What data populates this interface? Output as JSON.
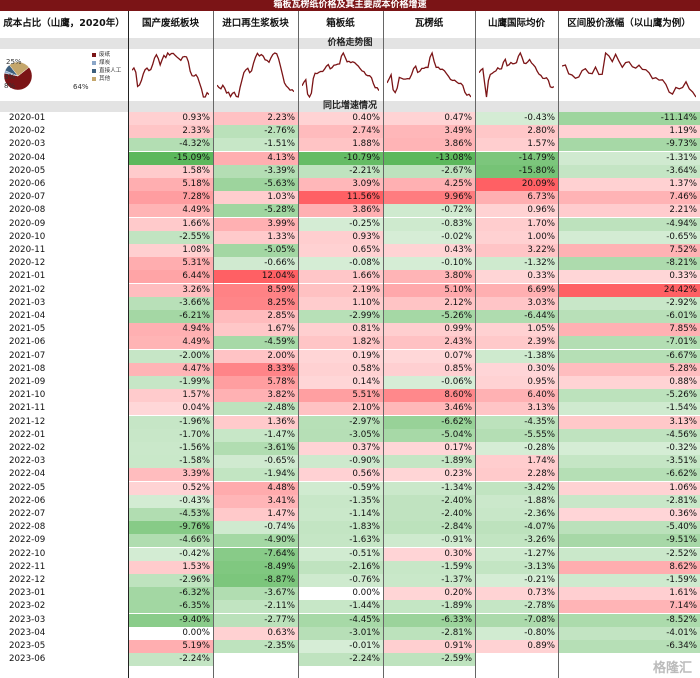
{
  "header": {
    "title": "箱板瓦楞纸价格及其主要成本价格增速",
    "cost_label": "成本占比（山鹰，2020年）",
    "columns": [
      "国产废纸板块",
      "进口再生浆板块",
      "箱板纸",
      "瓦楞纸",
      "山鹰国际均价",
      "区间股价涨幅（以山鹰为例）"
    ],
    "trend_label": "价格走势图",
    "yoy_label": "同比增速情况"
  },
  "pie": {
    "labels": [
      "废纸",
      "煤炭",
      "直接人工",
      "其他"
    ],
    "values": [
      64,
      3,
      8,
      25
    ],
    "value_labels": [
      "64%",
      "3%",
      "8%",
      "25%"
    ],
    "colors": [
      "#7b1416",
      "#8aa6c8",
      "#3d5f7d",
      "#c4a66b"
    ]
  },
  "colors": {
    "positive": "#f06a6e",
    "negative": "#5cb85c",
    "banner": "#7b1416"
  },
  "watermark": "格隆汇",
  "chart_data": {
    "type": "table",
    "title": "箱板瓦楞纸价格及其主要成本价格增速",
    "columns": [
      "国产废纸板块",
      "进口再生浆板块",
      "箱板纸",
      "瓦楞纸",
      "山鹰国际均价",
      "区间股价涨幅（以山鹰为例）"
    ],
    "rows": [
      {
        "date": "2020-01",
        "values": [
          "0.93%",
          "2.23%",
          "0.40%",
          "0.47%",
          "-0.43%",
          "-11.14%"
        ]
      },
      {
        "date": "2020-02",
        "values": [
          "2.33%",
          "-2.76%",
          "2.74%",
          "3.49%",
          "2.80%",
          "1.19%"
        ]
      },
      {
        "date": "2020-03",
        "values": [
          "-4.32%",
          "-1.51%",
          "1.88%",
          "3.86%",
          "1.57%",
          "-9.73%"
        ]
      },
      {
        "date": "2020-04",
        "values": [
          "-15.09%",
          "4.13%",
          "-10.79%",
          "-13.08%",
          "-14.79%",
          "-1.31%"
        ]
      },
      {
        "date": "2020-05",
        "values": [
          "1.58%",
          "-3.39%",
          "-2.21%",
          "-2.67%",
          "-15.80%",
          "-3.64%"
        ]
      },
      {
        "date": "2020-06",
        "values": [
          "5.18%",
          "-5.63%",
          "3.09%",
          "4.25%",
          "20.09%",
          "1.37%"
        ]
      },
      {
        "date": "2020-07",
        "values": [
          "7.28%",
          "1.03%",
          "11.56%",
          "9.96%",
          "6.73%",
          "7.46%"
        ]
      },
      {
        "date": "2020-08",
        "values": [
          "4.49%",
          "-5.28%",
          "3.86%",
          "-0.72%",
          "0.96%",
          "2.21%"
        ]
      },
      {
        "date": "2020-09",
        "values": [
          "1.66%",
          "3.99%",
          "-0.25%",
          "-0.83%",
          "1.70%",
          "-4.94%"
        ]
      },
      {
        "date": "2020-10",
        "values": [
          "-2.55%",
          "1.33%",
          "0.93%",
          "-0.02%",
          "1.00%",
          "-0.65%"
        ]
      },
      {
        "date": "2020-11",
        "values": [
          "1.08%",
          "-5.05%",
          "0.65%",
          "0.43%",
          "3.22%",
          "7.52%"
        ]
      },
      {
        "date": "2020-12",
        "values": [
          "5.31%",
          "-0.66%",
          "-0.08%",
          "-0.10%",
          "-1.32%",
          "-8.21%"
        ]
      },
      {
        "date": "2021-01",
        "values": [
          "6.44%",
          "12.04%",
          "1.66%",
          "3.80%",
          "0.33%",
          "0.33%"
        ]
      },
      {
        "date": "2021-02",
        "values": [
          "3.26%",
          "8.59%",
          "2.19%",
          "5.10%",
          "6.69%",
          "24.42%"
        ]
      },
      {
        "date": "2021-03",
        "values": [
          "-3.66%",
          "8.25%",
          "1.10%",
          "2.12%",
          "3.03%",
          "-2.92%"
        ]
      },
      {
        "date": "2021-04",
        "values": [
          "-6.21%",
          "2.85%",
          "-2.99%",
          "-5.26%",
          "-6.44%",
          "-6.01%"
        ]
      },
      {
        "date": "2021-05",
        "values": [
          "4.94%",
          "1.67%",
          "0.81%",
          "0.99%",
          "1.05%",
          "7.85%"
        ]
      },
      {
        "date": "2021-06",
        "values": [
          "4.49%",
          "-4.59%",
          "1.82%",
          "2.43%",
          "2.39%",
          "-7.01%"
        ]
      },
      {
        "date": "2021-07",
        "values": [
          "-2.00%",
          "2.00%",
          "0.19%",
          "0.07%",
          "-1.38%",
          "-6.67%"
        ]
      },
      {
        "date": "2021-08",
        "values": [
          "4.47%",
          "8.33%",
          "0.58%",
          "0.85%",
          "0.30%",
          "5.28%"
        ]
      },
      {
        "date": "2021-09",
        "values": [
          "-1.99%",
          "5.78%",
          "0.14%",
          "-0.06%",
          "0.95%",
          "0.88%"
        ]
      },
      {
        "date": "2021-10",
        "values": [
          "1.57%",
          "3.82%",
          "5.51%",
          "8.60%",
          "6.40%",
          "-5.26%"
        ]
      },
      {
        "date": "2021-11",
        "values": [
          "0.04%",
          "-2.48%",
          "2.10%",
          "3.46%",
          "3.13%",
          "-1.54%"
        ]
      },
      {
        "date": "2021-12",
        "values": [
          "-1.96%",
          "1.36%",
          "-2.97%",
          "-6.62%",
          "-4.35%",
          "3.13%"
        ]
      },
      {
        "date": "2022-01",
        "values": [
          "-1.70%",
          "-1.47%",
          "-3.05%",
          "-5.04%",
          "-5.55%",
          "-4.56%"
        ]
      },
      {
        "date": "2022-02",
        "values": [
          "-1.56%",
          "-3.61%",
          "0.37%",
          "0.17%",
          "-0.28%",
          "-0.32%"
        ]
      },
      {
        "date": "2022-03",
        "values": [
          "-1.58%",
          "-0.65%",
          "-0.90%",
          "-1.89%",
          "1.74%",
          "-3.51%"
        ]
      },
      {
        "date": "2022-04",
        "values": [
          "3.39%",
          "-1.94%",
          "0.56%",
          "0.23%",
          "2.28%",
          "-6.62%"
        ]
      },
      {
        "date": "2022-05",
        "values": [
          "0.52%",
          "4.48%",
          "-0.59%",
          "-1.34%",
          "-3.42%",
          "1.06%"
        ]
      },
      {
        "date": "2022-06",
        "values": [
          "-0.43%",
          "3.41%",
          "-1.35%",
          "-2.40%",
          "-1.88%",
          "-2.81%"
        ]
      },
      {
        "date": "2022-07",
        "values": [
          "-4.53%",
          "1.47%",
          "-1.14%",
          "-2.40%",
          "-2.36%",
          "0.36%"
        ]
      },
      {
        "date": "2022-08",
        "values": [
          "-9.76%",
          "-0.74%",
          "-1.83%",
          "-2.84%",
          "-4.07%",
          "-5.40%"
        ]
      },
      {
        "date": "2022-09",
        "values": [
          "-4.66%",
          "-4.90%",
          "-1.63%",
          "-0.91%",
          "-3.26%",
          "-9.51%"
        ]
      },
      {
        "date": "2022-10",
        "values": [
          "-0.42%",
          "-7.64%",
          "-0.51%",
          "0.30%",
          "-1.27%",
          "-2.52%"
        ]
      },
      {
        "date": "2022-11",
        "values": [
          "1.53%",
          "-8.49%",
          "-2.16%",
          "-1.59%",
          "-3.13%",
          "8.62%"
        ]
      },
      {
        "date": "2022-12",
        "values": [
          "-2.96%",
          "-8.87%",
          "-0.76%",
          "-1.37%",
          "-0.21%",
          "-1.59%"
        ]
      },
      {
        "date": "2023-01",
        "values": [
          "-6.32%",
          "-3.67%",
          "0.00%",
          "0.20%",
          "0.73%",
          "1.61%"
        ]
      },
      {
        "date": "2023-02",
        "values": [
          "-6.35%",
          "-2.11%",
          "-1.44%",
          "-1.89%",
          "-2.78%",
          "7.14%"
        ]
      },
      {
        "date": "2023-03",
        "values": [
          "-9.40%",
          "-2.77%",
          "-4.45%",
          "-6.33%",
          "-7.08%",
          "-8.52%"
        ]
      },
      {
        "date": "2023-04",
        "values": [
          "0.00%",
          "0.63%",
          "-3.01%",
          "-2.81%",
          "-0.80%",
          "-4.01%"
        ]
      },
      {
        "date": "2023-05",
        "values": [
          "5.19%",
          "-2.35%",
          "-0.01%",
          "0.91%",
          "0.89%",
          "-6.34%"
        ]
      },
      {
        "date": "2023-06",
        "values": [
          "-2.24%",
          "",
          "-2.24%",
          "-2.59%",
          "",
          ""
        ]
      }
    ]
  }
}
